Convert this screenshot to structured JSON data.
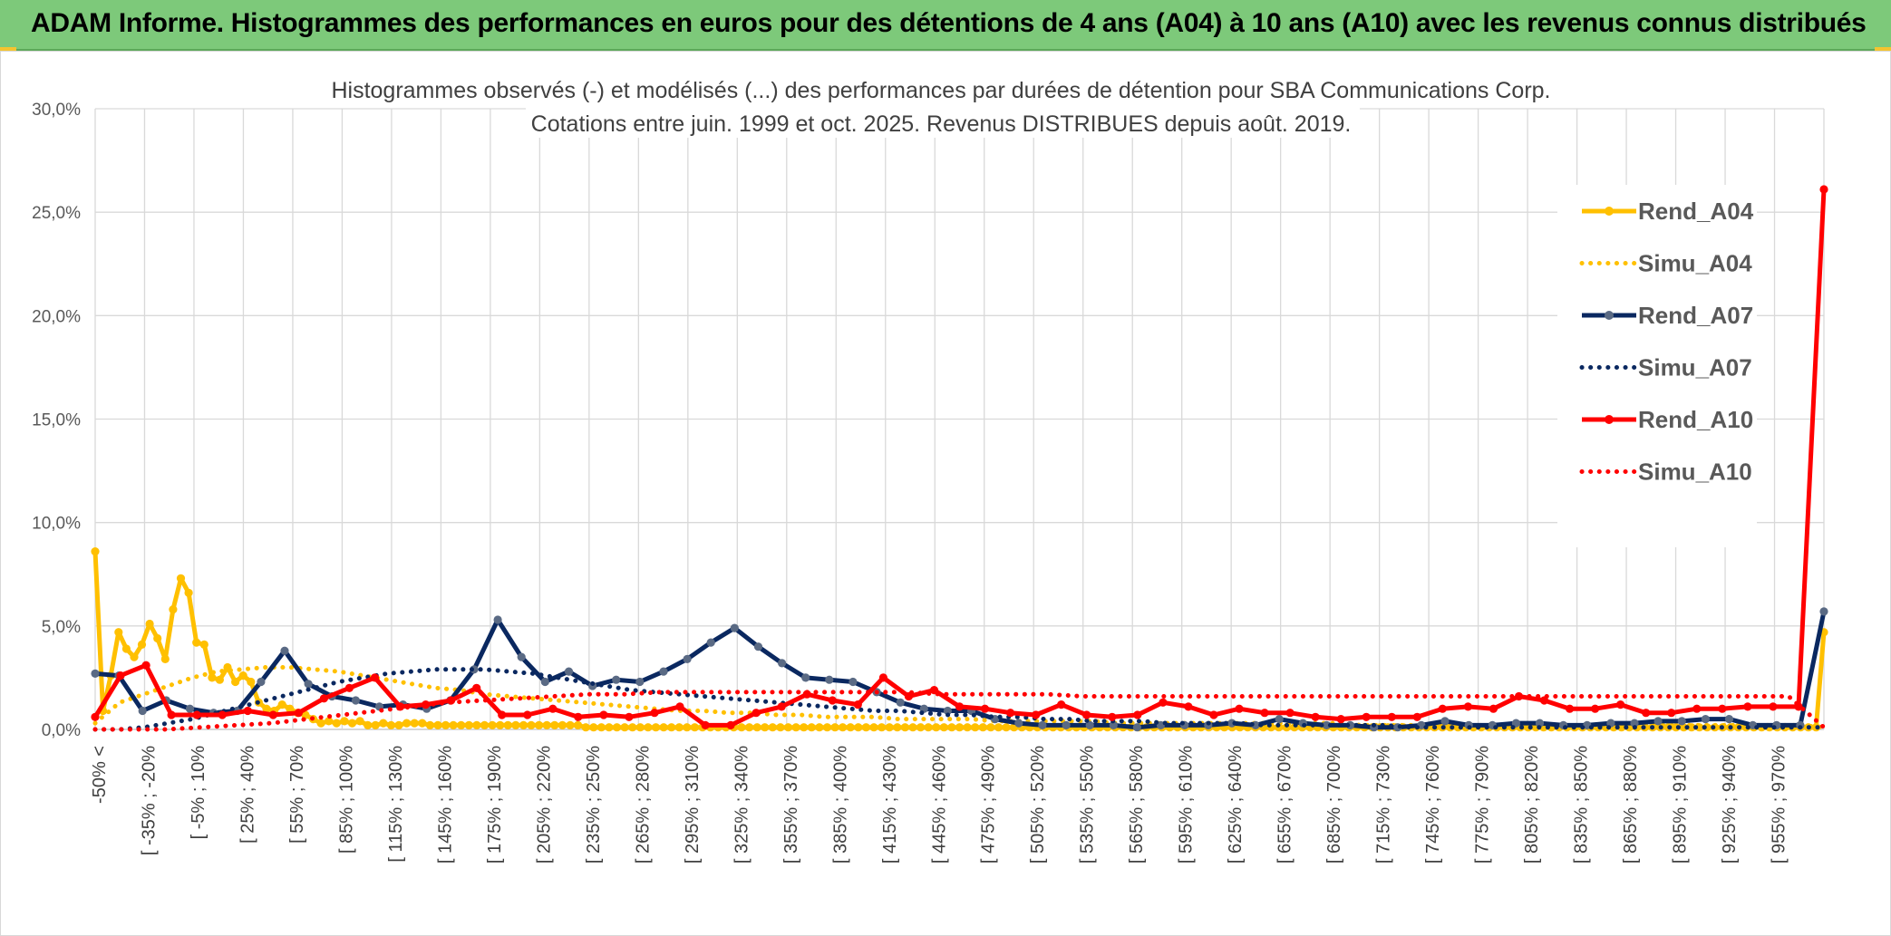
{
  "banner": {
    "title": "ADAM Informe. Histogrammes des performances en euros pour des détentions de 4 ans (A04) à 10 ans (A10) avec les revenus connus distribués"
  },
  "colors": {
    "banner": "#7dc97a",
    "a04": "#ffc000",
    "a07": "#0a2860",
    "a10": "#ff0000",
    "grid": "#d9d9d9"
  },
  "chart_data": {
    "type": "line",
    "title": "Histogrammes observés (-) et modélisés (...) des performances par durées de détention pour SBA Communications Corp.",
    "subtitle": "Cotations entre juin. 1999 et oct. 2025. Revenus DISTRIBUES depuis août. 2019.",
    "ylim": [
      0,
      30
    ],
    "yticks": [
      "30,0%",
      "25,0%",
      "20,0%",
      "15,0%",
      "10,0%",
      "5,0%",
      "0,0%"
    ],
    "grid": true,
    "legend_position": "right",
    "x_tick_labels": [
      "-50% <",
      "[ -35% ; -20%",
      "[ -5% ; 10%",
      "[ 25% ; 40%",
      "[ 55% ; 70%",
      "[ 85% ; 100%",
      "[ 115% ; 130%",
      "[ 145% ; 160%",
      "[ 175% ; 190%",
      "[ 205% ; 220%",
      "[ 235% ; 250%",
      "[ 265% ; 280%",
      "[ 295% ; 310%",
      "[ 325% ; 340%",
      "[ 355% ; 370%",
      "[ 385% ; 400%",
      "[ 415% ; 430%",
      "[ 445% ; 460%",
      "[ 475% ; 490%",
      "[ 505% ; 520%",
      "[ 535% ; 550%",
      "[ 565% ; 580%",
      "[ 595% ; 610%",
      "[ 625% ; 640%",
      "[ 655% ; 670%",
      "[ 685% ; 700%",
      "[ 715% ; 730%",
      "[ 745% ; 760%",
      "[ 775% ; 790%",
      "[ 805% ; 820%",
      "[ 835% ; 850%",
      "[ 865% ; 880%",
      "[ 895% ; 910%",
      "[ 925% ; 940%",
      "[ 955% ; 970%"
    ],
    "series": [
      {
        "name": "Rend_A04",
        "style": "solid",
        "color": "#ffc000",
        "values": [
          8.6,
          0.9,
          2.6,
          4.7,
          3.9,
          3.5,
          4.1,
          5.1,
          4.4,
          3.4,
          5.8,
          7.3,
          6.6,
          4.2,
          4.1,
          2.5,
          2.4,
          3.0,
          2.3,
          2.6,
          2.3,
          1.3,
          1.0,
          0.9,
          1.2,
          1.0,
          0.8,
          0.7,
          0.5,
          0.3,
          0.4,
          0.3,
          0.4,
          0.3,
          0.4,
          0.2,
          0.2,
          0.3,
          0.2,
          0.2,
          0.3,
          0.3,
          0.3,
          0.2,
          0.2,
          0.2,
          0.2,
          0.2,
          0.2,
          0.2,
          0.2,
          0.2,
          0.2,
          0.2,
          0.2,
          0.2,
          0.2,
          0.2,
          0.2,
          0.2,
          0.2,
          0.2,
          0.2,
          0.1,
          0.1,
          0.1,
          0.1,
          0.1,
          0.1,
          0.1,
          0.1,
          0.1,
          0.1,
          0.1,
          0.1,
          0.1,
          0.1,
          0.1,
          0.1,
          0.1,
          0.1,
          0.1,
          0.1,
          0.1,
          0.1,
          0.1,
          0.1,
          0.1,
          0.1,
          0.1,
          0.1,
          0.1,
          0.1,
          0.1,
          0.1,
          0.1,
          0.1,
          0.1,
          0.1,
          0.1,
          0.1,
          0.1,
          0.1,
          0.1,
          0.1,
          0.1,
          0.1,
          0.1,
          0.1,
          0.1,
          0.1,
          0.1,
          0.1,
          0.1,
          0.1,
          0.1,
          0.1,
          0.1,
          0.1,
          0.1,
          0.1,
          0.1,
          0.1,
          0.1,
          0.1,
          0.1,
          0.1,
          0.1,
          0.1,
          0.1,
          0.1,
          0.1,
          0.1,
          0.1,
          0.1,
          0.1,
          0.1,
          0.1,
          0.1,
          0.1,
          0.1,
          0.1,
          0.1,
          0.1,
          0.1,
          0.1,
          0.1,
          0.1,
          0.1,
          0.1,
          0.1,
          0.1,
          0.1,
          0.1,
          0.1,
          0.1,
          0.1,
          0.1,
          0.1,
          0.1,
          0.1,
          0.1,
          0.1,
          0.1,
          0.1,
          0.1,
          0.1,
          0.1,
          0.1,
          0.1,
          0.1,
          0.1,
          0.1,
          0.1,
          0.1,
          0.1,
          0.1,
          0.1,
          0.1,
          0.1,
          0.1,
          0.1,
          0.1,
          0.1,
          0.1,
          0.1,
          0.1,
          0.1,
          0.1,
          0.1,
          0.1,
          0.1,
          0.1,
          0.1,
          0.1,
          0.1,
          0.1,
          0.1,
          0.1,
          0.1,
          0.1,
          0.1,
          0.1,
          0.1,
          0.1,
          0.1,
          0.1,
          0.1,
          0.1,
          0.1,
          0.1,
          0.1,
          0.1,
          0.1,
          0.1,
          0.1,
          0.1,
          0.1,
          0.1,
          0.1,
          0.1,
          0.1,
          4.7
        ]
      },
      {
        "name": "Simu_A04",
        "style": "dotted",
        "color": "#ffc000",
        "values": [
          0.3,
          1.3,
          1.7,
          2.1,
          2.5,
          2.8,
          2.9,
          3.0,
          3.0,
          2.9,
          2.8,
          2.6,
          2.4,
          2.2,
          2.0,
          1.9,
          1.7,
          1.6,
          1.5,
          1.4,
          1.3,
          1.2,
          1.1,
          1.0,
          0.9,
          0.9,
          0.8,
          0.8,
          0.7,
          0.7,
          0.6,
          0.6,
          0.6,
          0.5,
          0.5,
          0.5,
          0.5,
          0.4,
          0.4,
          0.4,
          0.4,
          0.4,
          0.3,
          0.3,
          0.3,
          0.3,
          0.3,
          0.3,
          0.3,
          0.3,
          0.3,
          0.3,
          0.2,
          0.2,
          0.2,
          0.2,
          0.2,
          0.2,
          0.2,
          0.2,
          0.2,
          0.2,
          0.2,
          0.2,
          0.2,
          0.2,
          0.2,
          0.2,
          0.2,
          0.2,
          0.2,
          0.1
        ]
      },
      {
        "name": "Rend_A07",
        "style": "solid",
        "color": "#0a2860",
        "values": [
          2.7,
          2.6,
          0.9,
          1.4,
          1.0,
          0.8,
          0.9,
          2.3,
          3.8,
          2.2,
          1.6,
          1.4,
          1.1,
          1.2,
          1.0,
          1.4,
          2.9,
          5.3,
          3.5,
          2.3,
          2.8,
          2.1,
          2.4,
          2.3,
          2.8,
          3.4,
          4.2,
          4.9,
          4.0,
          3.2,
          2.5,
          2.4,
          2.3,
          1.8,
          1.3,
          1.0,
          0.9,
          0.9,
          0.5,
          0.3,
          0.2,
          0.2,
          0.2,
          0.2,
          0.1,
          0.2,
          0.2,
          0.2,
          0.3,
          0.2,
          0.5,
          0.3,
          0.2,
          0.2,
          0.1,
          0.1,
          0.2,
          0.4,
          0.2,
          0.2,
          0.3,
          0.3,
          0.2,
          0.2,
          0.3,
          0.3,
          0.4,
          0.4,
          0.5,
          0.5,
          0.2,
          0.2,
          0.2,
          5.7
        ]
      },
      {
        "name": "Simu_A07",
        "style": "dotted",
        "color": "#0a2860",
        "values": [
          0.0,
          0.0,
          0.1,
          0.3,
          0.5,
          0.8,
          1.1,
          1.4,
          1.7,
          2.0,
          2.3,
          2.5,
          2.7,
          2.8,
          2.9,
          2.9,
          2.9,
          2.8,
          2.7,
          2.5,
          2.3,
          2.1,
          1.9,
          1.8,
          1.7,
          1.6,
          1.5,
          1.4,
          1.3,
          1.2,
          1.1,
          1.0,
          0.9,
          0.9,
          0.8,
          0.7,
          0.7,
          0.6,
          0.6,
          0.5,
          0.5,
          0.4,
          0.4,
          0.4,
          0.3,
          0.3,
          0.3,
          0.3,
          0.2,
          0.2,
          0.2,
          0.2,
          0.2,
          0.2,
          0.1,
          0.1,
          0.1,
          0.1,
          0.1,
          0.1,
          0.1,
          0.1,
          0.1,
          0.1,
          0.1,
          0.1,
          0.1,
          0.1,
          0.1,
          0.1,
          0.1,
          0.1
        ]
      },
      {
        "name": "Rend_A10",
        "style": "solid",
        "color": "#ff0000",
        "values": [
          0.6,
          2.6,
          3.1,
          0.7,
          0.7,
          0.7,
          0.9,
          0.7,
          0.8,
          1.5,
          2.0,
          2.5,
          1.1,
          1.2,
          1.4,
          2.0,
          0.7,
          0.7,
          1.0,
          0.6,
          0.7,
          0.6,
          0.8,
          1.1,
          0.2,
          0.2,
          0.8,
          1.1,
          1.7,
          1.4,
          1.2,
          2.5,
          1.6,
          1.9,
          1.1,
          1.0,
          0.8,
          0.7,
          1.2,
          0.7,
          0.6,
          0.7,
          1.3,
          1.1,
          0.7,
          1.0,
          0.8,
          0.8,
          0.6,
          0.5,
          0.6,
          0.6,
          0.6,
          1.0,
          1.1,
          1.0,
          1.6,
          1.4,
          1.0,
          1.0,
          1.2,
          0.8,
          0.8,
          1.0,
          1.0,
          1.1,
          1.1,
          1.1,
          26.1
        ]
      },
      {
        "name": "Simu_A10",
        "style": "dotted",
        "color": "#ff0000",
        "values": [
          0.0,
          0.0,
          0.0,
          0.1,
          0.2,
          0.3,
          0.5,
          0.7,
          0.9,
          1.1,
          1.3,
          1.4,
          1.5,
          1.6,
          1.7,
          1.7,
          1.8,
          1.8,
          1.8,
          1.8,
          1.8,
          1.8,
          1.8,
          1.8,
          1.7,
          1.7,
          1.7,
          1.7,
          1.6,
          1.6,
          1.6,
          1.6,
          1.6,
          1.6,
          1.6,
          1.6,
          1.6,
          1.6,
          1.6,
          1.6,
          1.6,
          1.6,
          1.6,
          1.6,
          1.6,
          1.6,
          1.6,
          1.6,
          1.6,
          0.1
        ]
      }
    ]
  }
}
